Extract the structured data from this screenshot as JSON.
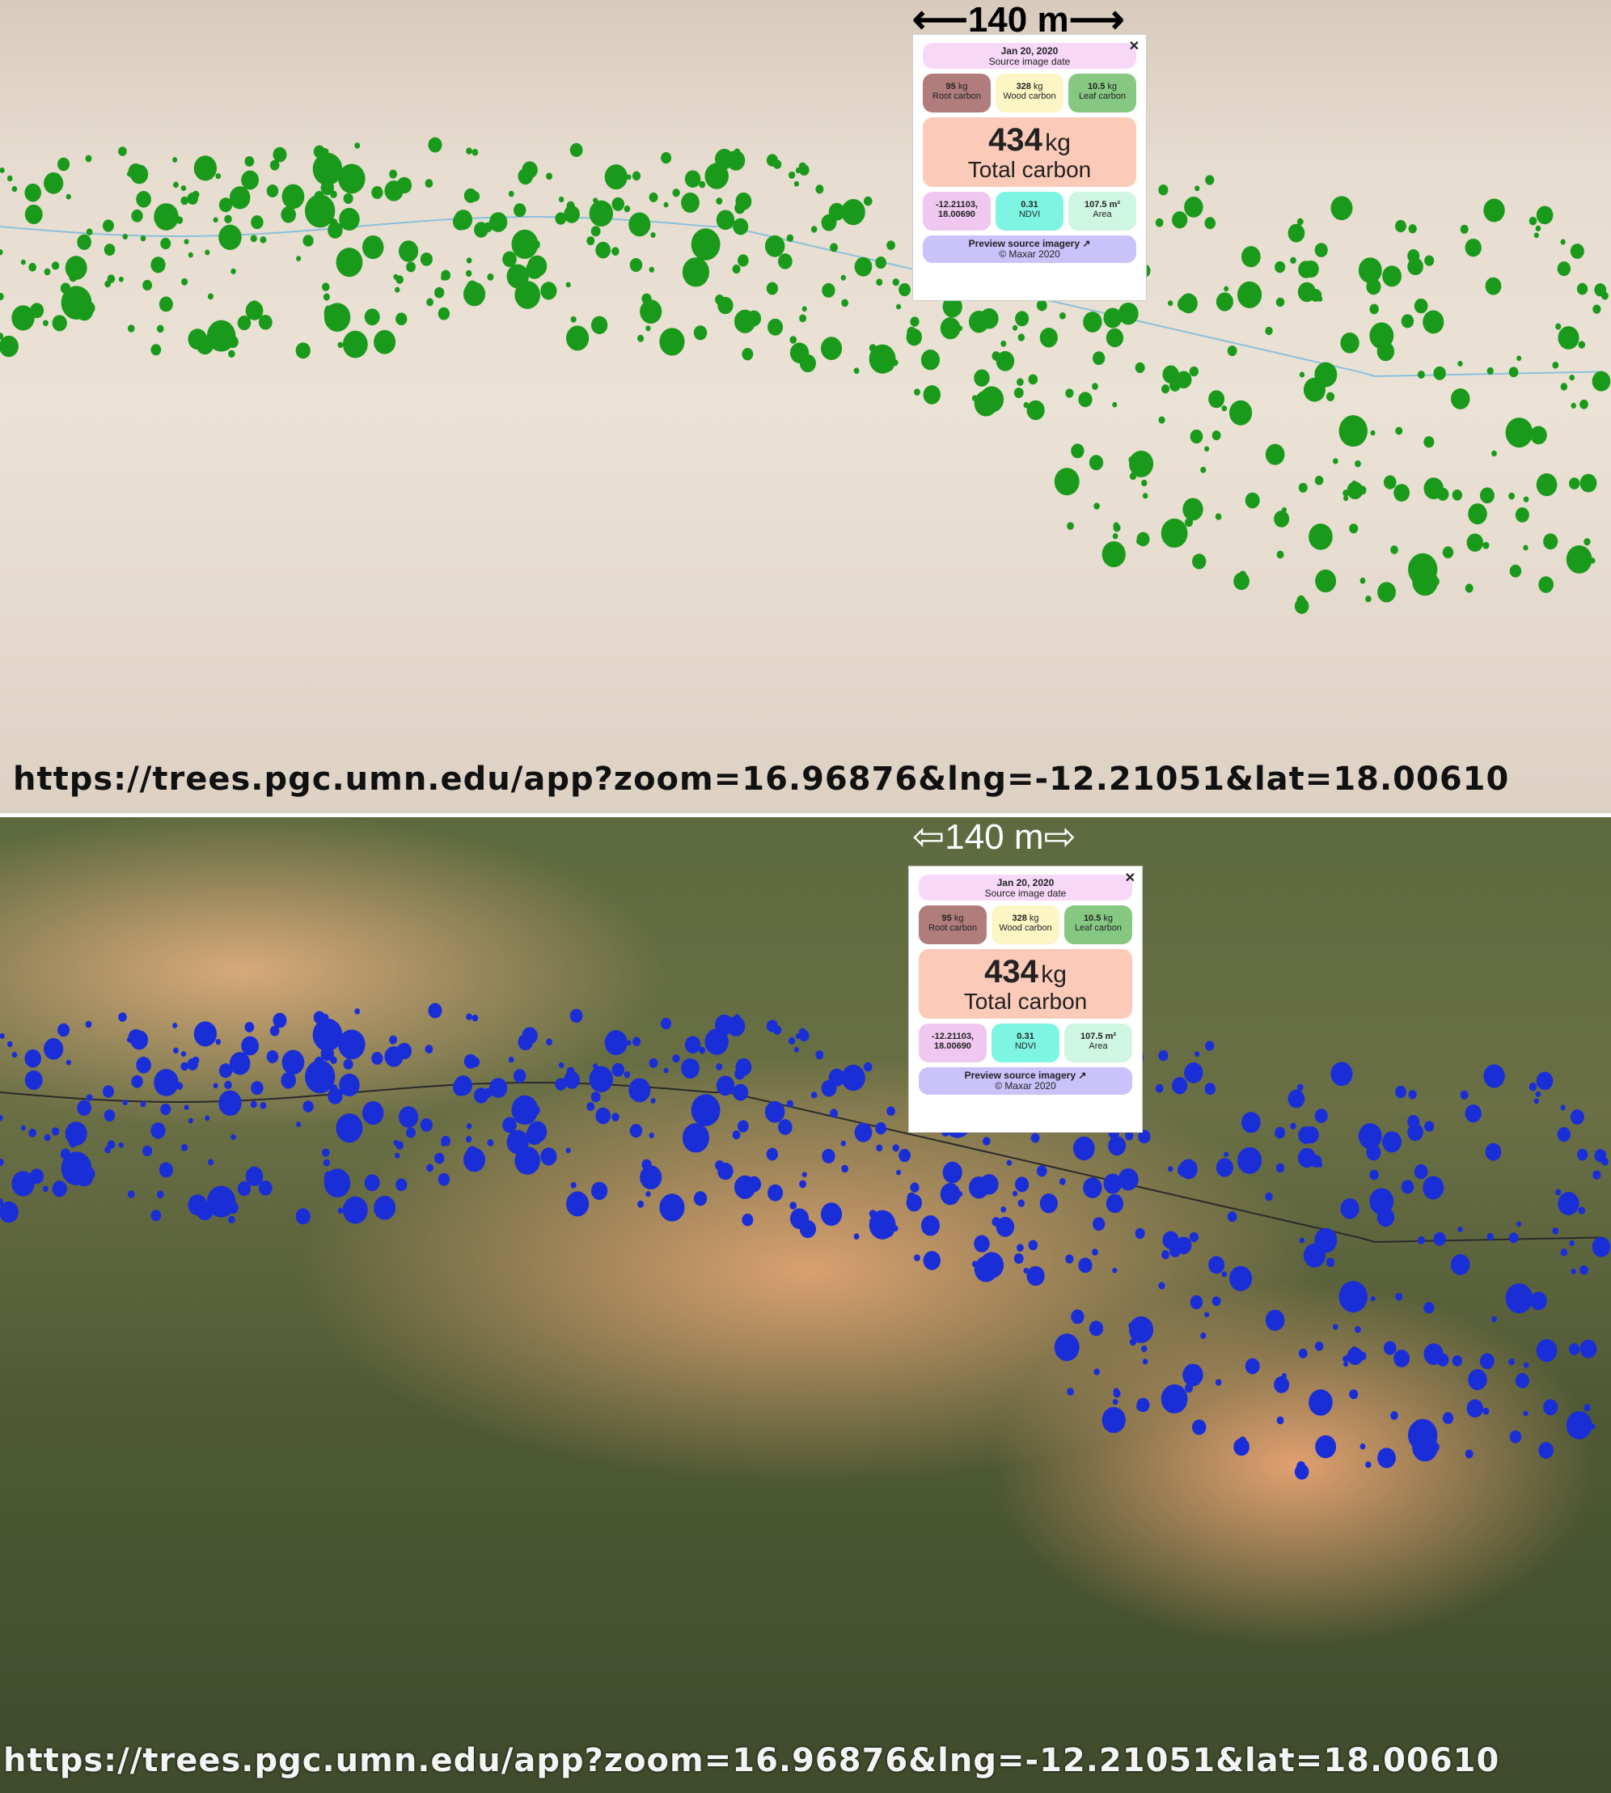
{
  "scale_label": "140 m",
  "url": "https://trees.pgc.umn.edu/app?zoom=16.96876&lng=-12.21051&lat=18.00610",
  "popup": {
    "date": "Jan 20, 2020",
    "date_label": "Source image date",
    "root": {
      "value": "95",
      "unit": "kg",
      "label": "Root carbon",
      "color": "#b07c7c"
    },
    "wood": {
      "value": "328",
      "unit": "kg",
      "label": "Wood carbon",
      "color": "#fbf6c4"
    },
    "leaf": {
      "value": "10.5",
      "unit": "kg",
      "label": "Leaf carbon",
      "color": "#86c882"
    },
    "total": {
      "value": "434",
      "unit": "kg",
      "label": "Total carbon"
    },
    "coords": "-12.21103, 18.00690",
    "ndvi": {
      "value": "0.31",
      "label": "NDVI",
      "color": "#7ef5e3"
    },
    "area": {
      "value": "107.5 m²",
      "label": "Area",
      "color": "#cff5e3"
    },
    "coords_color": "#f0c8ef",
    "preview": "Preview source imagery ↗",
    "credit": "© Maxar 2020"
  },
  "colors": {
    "tree_top": "#1a9a1a",
    "tree_bottom": "#1a2ed8",
    "river_top": "#8cc0dc",
    "river_bottom": "#2a2a2a"
  }
}
